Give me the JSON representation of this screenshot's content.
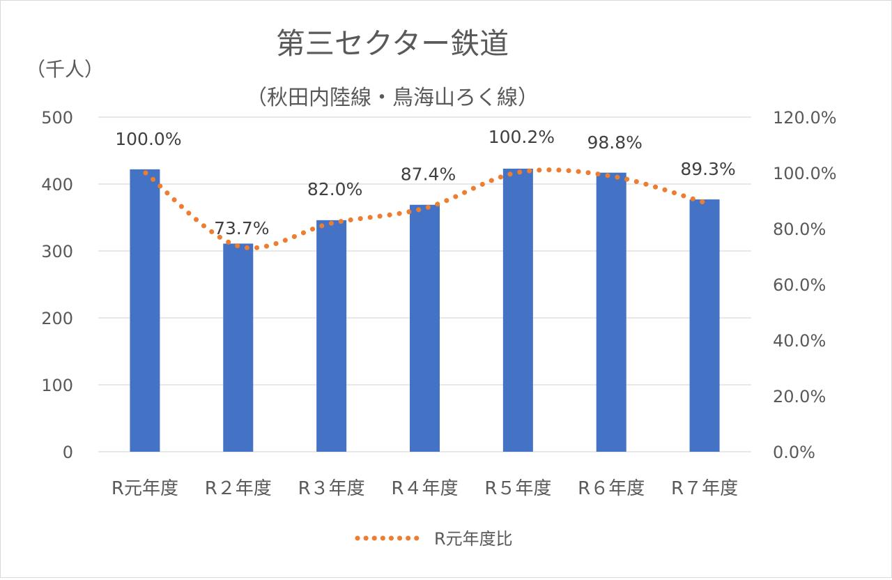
{
  "chart_data": {
    "type": "bar",
    "title": "第三セクター鉄道",
    "subtitle": "（秋田内陸線・鳥海山ろく線）",
    "y_unit_label": "（千人）",
    "categories": [
      "R元年度",
      "R２年度",
      "R３年度",
      "R４年度",
      "R５年度",
      "R６年度",
      "R７年度"
    ],
    "series": [
      {
        "kind": "bar",
        "axis": "left",
        "color": "#4472c4",
        "values": [
          422,
          311,
          346,
          369,
          423,
          417,
          377
        ]
      },
      {
        "kind": "line",
        "axis": "right",
        "name": "R元年度比",
        "style": "dotted",
        "color": "#ed7d31",
        "values": [
          100.0,
          73.7,
          82.0,
          87.4,
          100.2,
          98.8,
          89.3
        ],
        "labels": [
          "100.0%",
          "73.7%",
          "82.0%",
          "87.4%",
          "100.2%",
          "98.8%",
          "89.3%"
        ]
      }
    ],
    "y_left": {
      "min": 0,
      "max": 500,
      "ticks": [
        "0",
        "100",
        "200",
        "300",
        "400",
        "500"
      ]
    },
    "y_right": {
      "min": 0,
      "max": 120,
      "ticks": [
        "0.0%",
        "20.0%",
        "40.0%",
        "60.0%",
        "80.0%",
        "100.0%",
        "120.0%"
      ]
    },
    "grid": true,
    "legend_position": "bottom"
  }
}
